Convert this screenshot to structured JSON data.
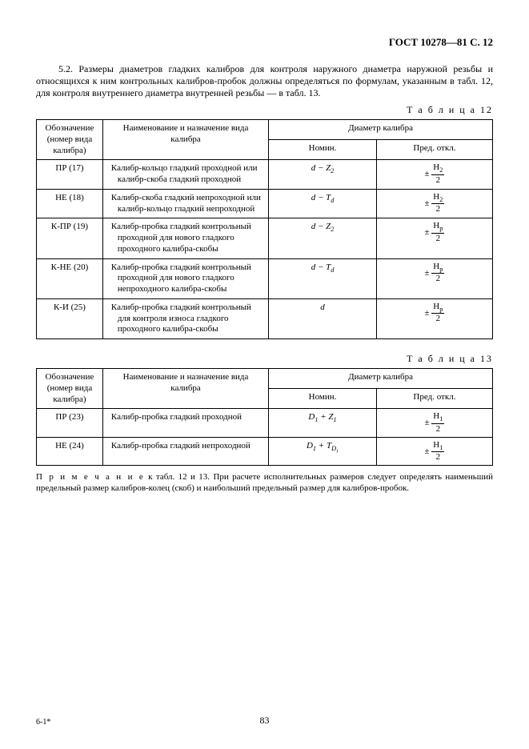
{
  "header": "ГОСТ 10278—81 С. 12",
  "para": "5.2. Размеры диаметров гладких калибров для контроля наружного диаметра наружной резьбы и относящихся к ним контрольных калибров-пробок должны определяться по формулам, указанным в табл. 12, для контроля внутреннего диаметра внутренней резьбы — в табл. 13.",
  "t12label": "Т а б л и ц а  12",
  "t13label": "Т а б л и ц а  13",
  "thead": {
    "c0": "Обозначение (номер вида калибра)",
    "c1": "Наименование и назначение вида калибра",
    "cD": "Диаметр калибра",
    "cN": "Номин.",
    "cP": "Пред. откл."
  },
  "t12": [
    {
      "code": "ПР (17)",
      "name": "Калибр-кольцо гладкий проходной или калибр-скоба гладкий проходной",
      "nomHtml": "<span class='nomi'>d</span> − <span class='nomi'>Z</span><span class='sub'>2</span>",
      "limHtml": "± <span class='frac'><span class='num'>H<span class=\"sub\">2</span></span><span class='den'>2</span></span>"
    },
    {
      "code": "НЕ (18)",
      "name": "Калибр-скоба гладкий непроходной или калибр-кольцо гладкий непроходной",
      "nomHtml": "<span class='nomi'>d</span> − T<span class='sub nomi'>d</span>",
      "limHtml": "± <span class='frac'><span class='num'>H<span class=\"sub\">2</span></span><span class='den'>2</span></span>"
    },
    {
      "code": "К-ПР (19)",
      "name": "Калибр-пробка гладкий контрольный проходной для нового гладкого проходного калибра-скобы",
      "nomHtml": "<span class='nomi'>d</span> − <span class='nomi'>Z</span><span class='sub'>2</span>",
      "limHtml": "± <span class='frac'><span class='num'>H<span class=\"sub\">p</span></span><span class='den'>2</span></span>"
    },
    {
      "code": "К-НЕ (20)",
      "name": "Калибр-пробка гладкий контрольный проходной для нового гладкого непроходного калибра-скобы",
      "nomHtml": "<span class='nomi'>d</span> − <span class='nomi'>T<span class='sub'>d</span></span>",
      "limHtml": "± <span class='frac'><span class='num'>H<span class=\"sub\">p</span></span><span class='den'>2</span></span>"
    },
    {
      "code": "К-И (25)",
      "name": "Калибр-пробка гладкий контрольный для контроля износа гладкого проходного калибра-скобы",
      "nomHtml": "<span class='nomi'>d</span>",
      "limHtml": "± <span class='frac'><span class='num'>H<span class=\"sub\">p</span></span><span class='den'>2</span></span>"
    }
  ],
  "t13": [
    {
      "code": "ПР (23)",
      "name": "Калибр-пробка гладкий проходной",
      "nomHtml": "<span class='nomi'>D</span><span class='sub'>1</span> + <span class='nomi'>Z</span><span class='sub'>1</span>",
      "limHtml": "± <span class='frac'><span class='num'>H<span class=\"sub\">1</span></span><span class='den'>2</span></span>"
    },
    {
      "code": "НЕ (24)",
      "name": "Калибр-пробка гладкий непроходной",
      "nomHtml": "<span class='nomi'>D</span><span class='sub'>1</span> + T<span class='sub'>D<span class=\"sub\">1</span></span>",
      "limHtml": "± <span class='frac'><span class='num'>H<span class=\"sub\">1</span></span><span class='den'>2</span></span>"
    }
  ],
  "noteLabel": "П р и м е ч а н и е",
  "note": " к табл. 12 и 13. При расчете исполнительных размеров следует определять наименьший предельный размер калибров-колец (скоб) и наибольший предельный размер для калибров-пробок.",
  "pageNum": "83",
  "sig": "6-1*"
}
